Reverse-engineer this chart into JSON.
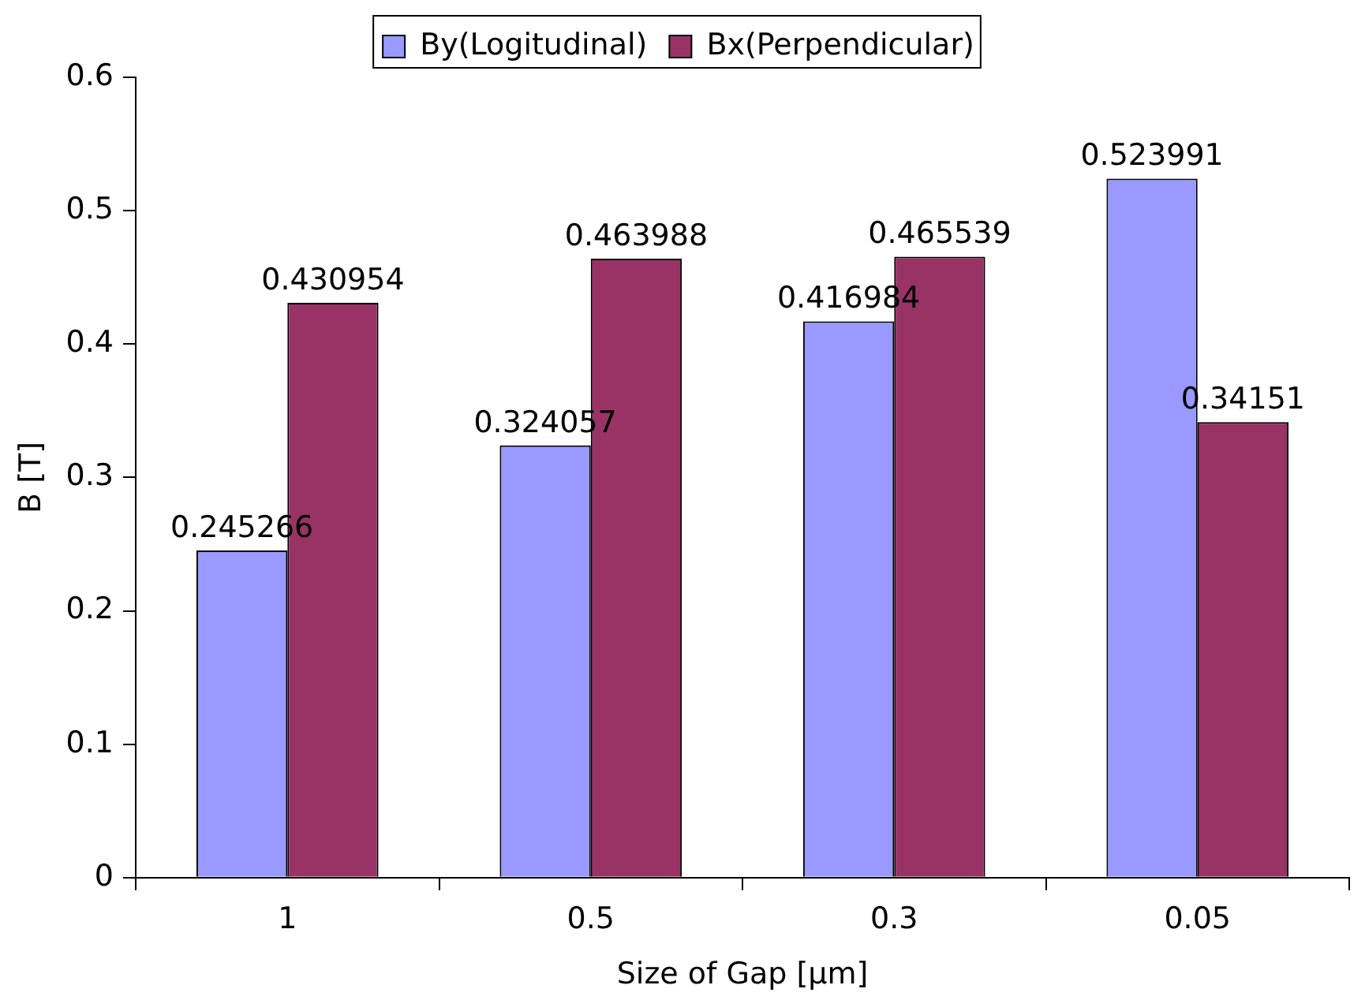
{
  "chart_data": {
    "type": "bar",
    "xlabel": "Size of Gap [μm]",
    "ylabel": "B [T]",
    "categories": [
      "1",
      "0.5",
      "0.3",
      "0.05"
    ],
    "series": [
      {
        "name": "By(Logitudinal)",
        "color": "#9999ff",
        "values": [
          0.245266,
          0.324057,
          0.416984,
          0.523991
        ]
      },
      {
        "name": "Bx(Perpendicular)",
        "color": "#993366",
        "values": [
          0.430954,
          0.463988,
          0.465539,
          0.34151
        ]
      }
    ],
    "ylim": [
      0,
      0.6
    ],
    "yticks": [
      0,
      0.1,
      0.2,
      0.3,
      0.4,
      0.5,
      0.6
    ],
    "grid": false,
    "legend": "top",
    "data_labels": true
  }
}
